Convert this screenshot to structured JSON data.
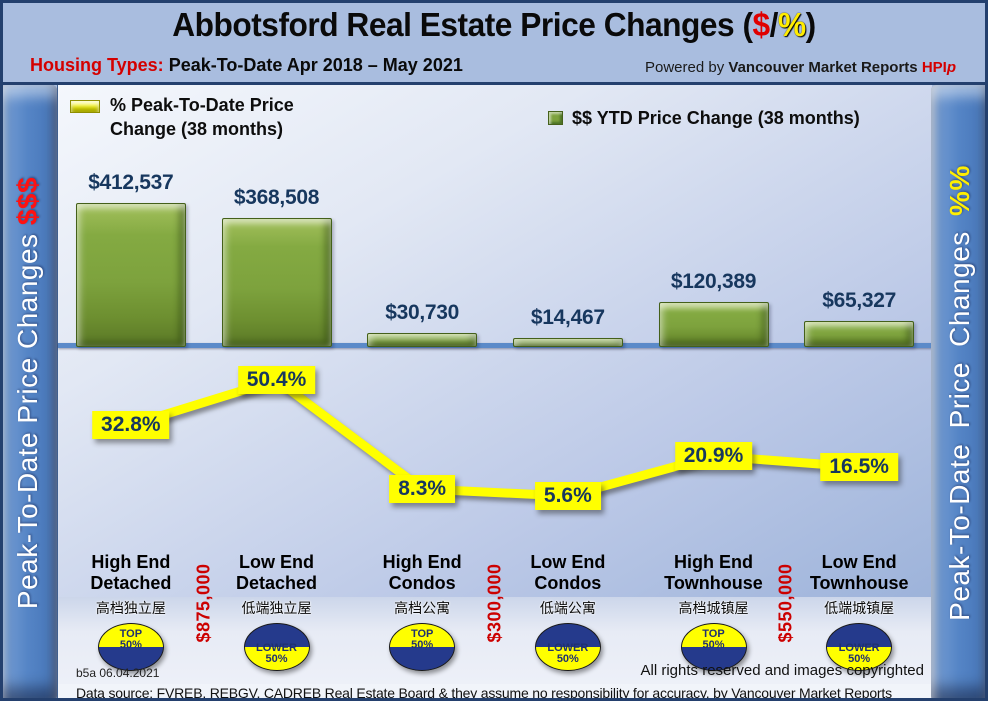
{
  "header": {
    "title": {
      "prefix": "Abbotsford Real Estate Price Changes (",
      "dollar": "$",
      "slash": "/",
      "percent": "%",
      "suffix": ")"
    },
    "subtitle": {
      "label": "Housing Types:",
      "text": "Peak-To-Date Apr 2018 – May 2021"
    },
    "powered": {
      "prefix": "Powered by",
      "brand": "Vancouver Market Reports",
      "hpi": "HPI",
      "hpi_suffix": "p"
    }
  },
  "sidebar_left": {
    "text": "Peak-To-Date Price Changes",
    "accent": "$$$"
  },
  "sidebar_right": {
    "text": "Peak-To-Date Price Changes",
    "accent": "%%"
  },
  "legend": {
    "percent_label": "% Peak-To-Date Price Change (38 months)",
    "dollar_label": "$$ YTD Price Change (38 months)"
  },
  "chart_data": {
    "type": "combo bar + line",
    "title": "Abbotsford Real Estate Price Changes ($/%)",
    "subtitle": "Housing Types: Peak-To-Date Apr 2018 – May 2021",
    "legend_position": "top",
    "grid": false,
    "categories": [
      "High End Detached",
      "Low End Detached",
      "High End Condos",
      "Low End Condos",
      "High End Townhouse",
      "Low End Townhouse"
    ],
    "categories_zh": [
      "高档独立屋",
      "低端独立屋",
      "高档公寓",
      "低端公寓",
      "高档城镇屋",
      "低端城镇屋"
    ],
    "series": [
      {
        "name": "$$ YTD Price Change (38 months)",
        "type": "bar",
        "color": "#7da23d",
        "values": [
          412537,
          368508,
          30730,
          14467,
          120389,
          65327
        ],
        "labels": [
          "$412,537",
          "$368,508",
          "$30,730",
          "$14,467",
          "$120,389",
          "$65,327"
        ]
      },
      {
        "name": "% Peak-To-Date Price Change (38 months)",
        "type": "line",
        "color": "#ffff00",
        "values": [
          32.8,
          50.4,
          8.3,
          5.6,
          20.9,
          16.5
        ],
        "labels": [
          "32.8%",
          "50.4%",
          "8.3%",
          "5.6%",
          "20.9%",
          "16.5%"
        ]
      }
    ],
    "badges": [
      {
        "line1": "TOP",
        "line2": "50%",
        "position": "top"
      },
      {
        "line1": "LOWER",
        "line2": "50%",
        "position": "bottom"
      },
      {
        "line1": "TOP",
        "line2": "50%",
        "position": "top"
      },
      {
        "line1": "LOWER",
        "line2": "50%",
        "position": "bottom"
      },
      {
        "line1": "TOP",
        "line2": "50%",
        "position": "top"
      },
      {
        "line1": "LOWER",
        "line2": "50%",
        "position": "bottom"
      }
    ],
    "price_thresholds": [
      {
        "label": "$875,000",
        "between": [
          0,
          1
        ]
      },
      {
        "label": "$300,000",
        "between": [
          2,
          3
        ]
      },
      {
        "label": "$550,000",
        "between": [
          4,
          5
        ]
      }
    ],
    "axis": {
      "bar_max": 412537,
      "line_min": 0,
      "line_max": 60
    }
  },
  "footer": {
    "version": "b5a 06.04.2021",
    "rights": "All rights reserved and  images copyrighted",
    "source": "Data source: FVREB, REBGV, CADREB Real Estate Board & they assume no responsibility for accuracy. by Vancouver Market Reports"
  },
  "colors": {
    "bar_green": "#7da23d",
    "line_yellow": "#ffff00",
    "value_navy": "#17375e",
    "accent_red": "#d40000",
    "badge_navy": "#253a8c",
    "axis_blue": "#5b8ac9",
    "header_bg": "#a9bddf"
  }
}
